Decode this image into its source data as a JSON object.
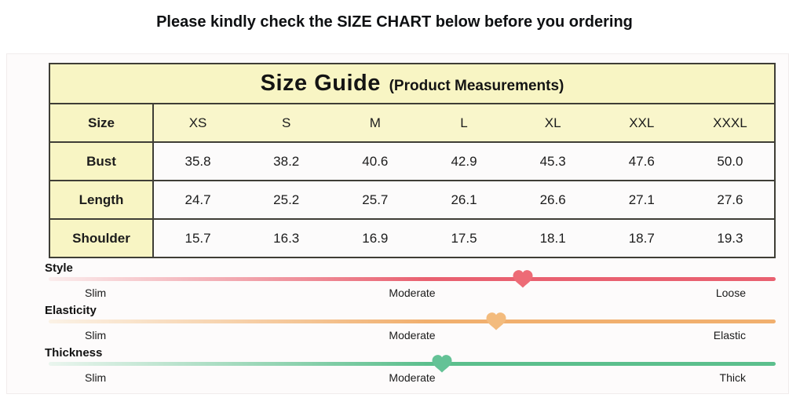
{
  "page": {
    "title": "Please kindly check the SIZE CHART below before you ordering"
  },
  "table": {
    "title": "Size Guide",
    "subtitle": "(Product Measurements)",
    "size_label": "Size",
    "sizes": [
      "XS",
      "S",
      "M",
      "L",
      "XL",
      "XXL",
      "XXXL"
    ],
    "rows": [
      {
        "label": "Bust",
        "values": [
          "35.8",
          "38.2",
          "40.6",
          "42.9",
          "45.3",
          "47.6",
          "50.0"
        ]
      },
      {
        "label": "Length",
        "values": [
          "24.7",
          "25.2",
          "25.7",
          "26.1",
          "26.6",
          "27.1",
          "27.6"
        ]
      },
      {
        "label": "Shoulder",
        "values": [
          "15.7",
          "16.3",
          "16.9",
          "17.5",
          "18.1",
          "18.7",
          "19.3"
        ]
      }
    ],
    "colors": {
      "header_bg": "#F8F5C4",
      "size_row_bg": "#F9F6CB",
      "value_cell_bg": "#FCFBFB",
      "border": "#3F3E36"
    }
  },
  "sliders": [
    {
      "name": "Style",
      "left_label": "Slim",
      "middle_label": "Moderate",
      "right_label": "Loose",
      "color": "#E96070",
      "color_light": "#FBEDED",
      "heart_color": "#ED6B76",
      "marker_percent": 65.2
    },
    {
      "name": "Elasticity",
      "left_label": "Slim",
      "middle_label": "Moderate",
      "right_label": "Elastic",
      "color": "#F1AF6E",
      "color_light": "#FBF2E6",
      "heart_color": "#F3BB7D",
      "marker_percent": 61.6
    },
    {
      "name": "Thickness",
      "left_label": "Slim",
      "middle_label": "Moderate",
      "right_label": "Thick",
      "color": "#5CBF8D",
      "color_light": "#EAF5EE",
      "heart_color": "#64C296",
      "marker_percent": 54.1
    }
  ]
}
